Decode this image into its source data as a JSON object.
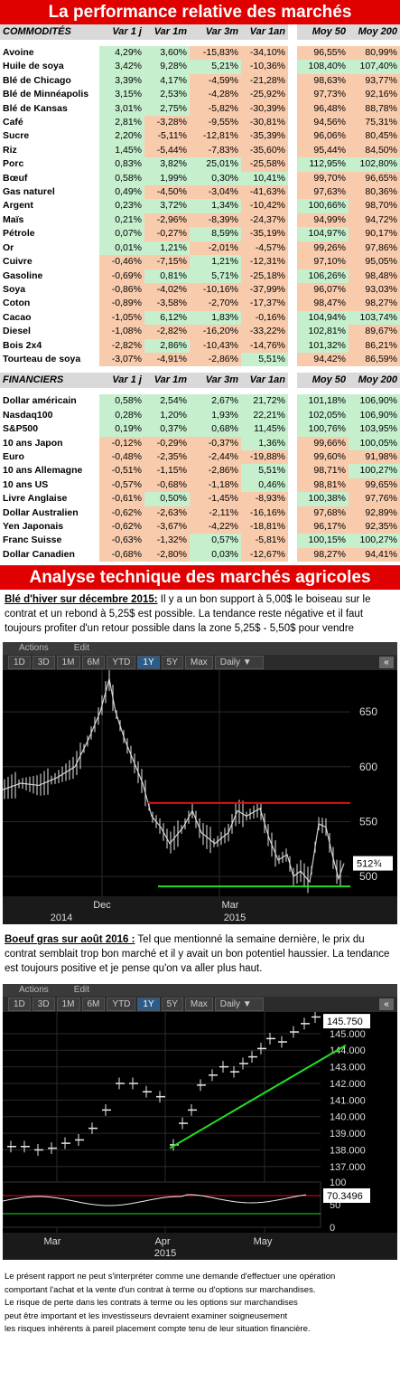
{
  "title": "La performance relative des marchés",
  "commodities": {
    "headers": [
      "COMMODITÉS",
      "Var 1 j",
      "Var 1m",
      "Var 3m",
      "Var 1an",
      "Moy 50",
      "Moy 200"
    ],
    "rows": [
      [
        "Avoine",
        "4,29%",
        "3,60%",
        "-15,83%",
        "-34,10%",
        "96,55%",
        "80,99%"
      ],
      [
        "Huile de soya",
        "3,42%",
        "9,28%",
        "5,21%",
        "-10,36%",
        "108,40%",
        "107,40%"
      ],
      [
        "Blé de Chicago",
        "3,39%",
        "4,17%",
        "-4,59%",
        "-21,28%",
        "98,63%",
        "93,77%"
      ],
      [
        "Blé de Minnéapolis",
        "3,15%",
        "2,53%",
        "-4,28%",
        "-25,92%",
        "97,73%",
        "92,16%"
      ],
      [
        "Blé de Kansas",
        "3,01%",
        "2,75%",
        "-5,82%",
        "-30,39%",
        "96,48%",
        "88,78%"
      ],
      [
        "Café",
        "2,81%",
        "-3,28%",
        "-9,55%",
        "-30,81%",
        "94,56%",
        "75,31%"
      ],
      [
        "Sucre",
        "2,20%",
        "-5,11%",
        "-12,81%",
        "-35,39%",
        "96,06%",
        "80,45%"
      ],
      [
        "Riz",
        "1,45%",
        "-5,44%",
        "-7,83%",
        "-35,60%",
        "95,44%",
        "84,50%"
      ],
      [
        "Porc",
        "0,83%",
        "3,82%",
        "25,01%",
        "-25,58%",
        "112,95%",
        "102,80%"
      ],
      [
        "Bœuf",
        "0,58%",
        "1,99%",
        "0,30%",
        "10,41%",
        "99,70%",
        "96,65%"
      ],
      [
        "Gas naturel",
        "0,49%",
        "-4,50%",
        "-3,04%",
        "-41,63%",
        "97,63%",
        "80,36%"
      ],
      [
        "Argent",
        "0,23%",
        "3,72%",
        "1,34%",
        "-10,42%",
        "100,66%",
        "98,70%"
      ],
      [
        "Maïs",
        "0,21%",
        "-2,96%",
        "-8,39%",
        "-24,37%",
        "94,99%",
        "94,72%"
      ],
      [
        "Pétrole",
        "0,07%",
        "-0,27%",
        "8,59%",
        "-35,19%",
        "104,97%",
        "90,17%"
      ],
      [
        "Or",
        "0,01%",
        "1,21%",
        "-2,01%",
        "-4,57%",
        "99,26%",
        "97,86%"
      ],
      [
        "Cuivre",
        "-0,46%",
        "-7,15%",
        "1,21%",
        "-12,31%",
        "97,10%",
        "95,05%"
      ],
      [
        "Gasoline",
        "-0,69%",
        "0,81%",
        "5,71%",
        "-25,18%",
        "106,26%",
        "98,48%"
      ],
      [
        "Soya",
        "-0,86%",
        "-4,02%",
        "-10,16%",
        "-37,99%",
        "96,07%",
        "93,03%"
      ],
      [
        "Coton",
        "-0,89%",
        "-3,58%",
        "-2,70%",
        "-17,37%",
        "98,47%",
        "98,27%"
      ],
      [
        "Cacao",
        "-1,05%",
        "6,12%",
        "1,83%",
        "-0,16%",
        "104,94%",
        "103,74%"
      ],
      [
        "Diesel",
        "-1,08%",
        "-2,82%",
        "-16,20%",
        "-33,22%",
        "102,81%",
        "89,67%"
      ],
      [
        "Bois 2x4",
        "-2,82%",
        "2,86%",
        "-10,43%",
        "-14,76%",
        "101,32%",
        "86,21%"
      ],
      [
        "Tourteau de soya",
        "-3,07%",
        "-4,91%",
        "-2,86%",
        "5,51%",
        "94,42%",
        "86,59%"
      ]
    ]
  },
  "financials": {
    "headers": [
      "FINANCIERS",
      "Var 1 j",
      "Var 1m",
      "Var 3m",
      "Var 1an",
      "Moy 50",
      "Moy 200"
    ],
    "rows": [
      [
        "Dollar américain",
        "0,58%",
        "2,54%",
        "2,67%",
        "21,72%",
        "101,18%",
        "106,90%"
      ],
      [
        "Nasdaq100",
        "0,28%",
        "1,20%",
        "1,93%",
        "22,21%",
        "102,05%",
        "106,90%"
      ],
      [
        "S&P500",
        "0,19%",
        "0,37%",
        "0,68%",
        "11,45%",
        "100,76%",
        "103,95%"
      ],
      [
        "10 ans Japon",
        "-0,12%",
        "-0,29%",
        "-0,37%",
        "1,36%",
        "99,66%",
        "100,05%"
      ],
      [
        "Euro",
        "-0,48%",
        "-2,35%",
        "-2,44%",
        "-19,88%",
        "99,60%",
        "91,98%"
      ],
      [
        "10 ans Allemagne",
        "-0,51%",
        "-1,15%",
        "-2,86%",
        "5,51%",
        "98,71%",
        "100,27%"
      ],
      [
        "10 ans US",
        "-0,57%",
        "-0,68%",
        "-1,18%",
        "0,46%",
        "98,81%",
        "99,65%"
      ],
      [
        "Livre Anglaise",
        "-0,61%",
        "0,50%",
        "-1,45%",
        "-8,93%",
        "100,38%",
        "97,76%"
      ],
      [
        "Dollar Australien",
        "-0,62%",
        "-2,63%",
        "-2,11%",
        "-16,16%",
        "97,68%",
        "92,89%"
      ],
      [
        "Yen Japonais",
        "-0,62%",
        "-3,67%",
        "-4,22%",
        "-18,81%",
        "96,17%",
        "92,35%"
      ],
      [
        "Franc Suisse",
        "-0,63%",
        "-1,32%",
        "0,57%",
        "-5,81%",
        "100,15%",
        "100,27%"
      ],
      [
        "Dollar Canadien",
        "-0,68%",
        "-2,80%",
        "0,03%",
        "-12,67%",
        "98,27%",
        "94,41%"
      ]
    ]
  },
  "analysis_title": "Analyse technique des marchés agricoles",
  "wheat": {
    "lead": "Blé d'hiver sur décembre 2015:",
    "text": " Il y a un bon support à 5,00$ le boiseau sur le contrat et un rebond à 5,25$ est possible. La tendance reste négative et il faut toujours profiter d'un retour possible dans la zone 5,25$ - 5,50$ pour vendre"
  },
  "chart_ui": {
    "menu": [
      "Actions",
      "Edit"
    ],
    "timeframes": [
      "1D",
      "3D",
      "1M",
      "6M",
      "YTD",
      "1Y",
      "5Y",
      "Max"
    ],
    "selected": "1Y",
    "interval": "Daily ▼",
    "nav": "«"
  },
  "chart1": {
    "y_ticks": [
      "650",
      "600",
      "550",
      "500"
    ],
    "last_label": "512¾",
    "x_months": [
      "Dec",
      "Mar"
    ],
    "x_years": [
      "2014",
      "2015"
    ],
    "resistance": 567,
    "support": 491
  },
  "beef": {
    "lead": "Boeuf gras sur août 2016 :",
    "text": " Tel que mentionné la semaine dernière, le prix du contrat semblait trop bon marché et il y avait un bon potentiel haussier. La tendance est toujours positive et je pense qu'on va aller plus haut."
  },
  "chart2": {
    "y_ticks": [
      "145.000",
      "144.000",
      "143.000",
      "142.000",
      "141.000",
      "140.000",
      "139.000",
      "138.000",
      "137.000"
    ],
    "last_label": "145.750",
    "rsi_ticks": [
      "100",
      "50",
      "0"
    ],
    "rsi_label": "70.3496",
    "x_months": [
      "Mar",
      "Apr",
      "May"
    ],
    "x_year": "2015"
  },
  "footer": [
    "Le présent rapport ne peut s'interpréter comme une demande d'effectuer une opération",
    "comportant l'achat et la vente d'un contrat à terme ou d'options sur marchandises.",
    "Le risque de perte dans les contrats à terme ou les options sur marchandises",
    "peut être important et les investisseurs devraient examiner soigneusement",
    "les risques inhérents à pareil placement compte tenu de leur situation financière."
  ]
}
